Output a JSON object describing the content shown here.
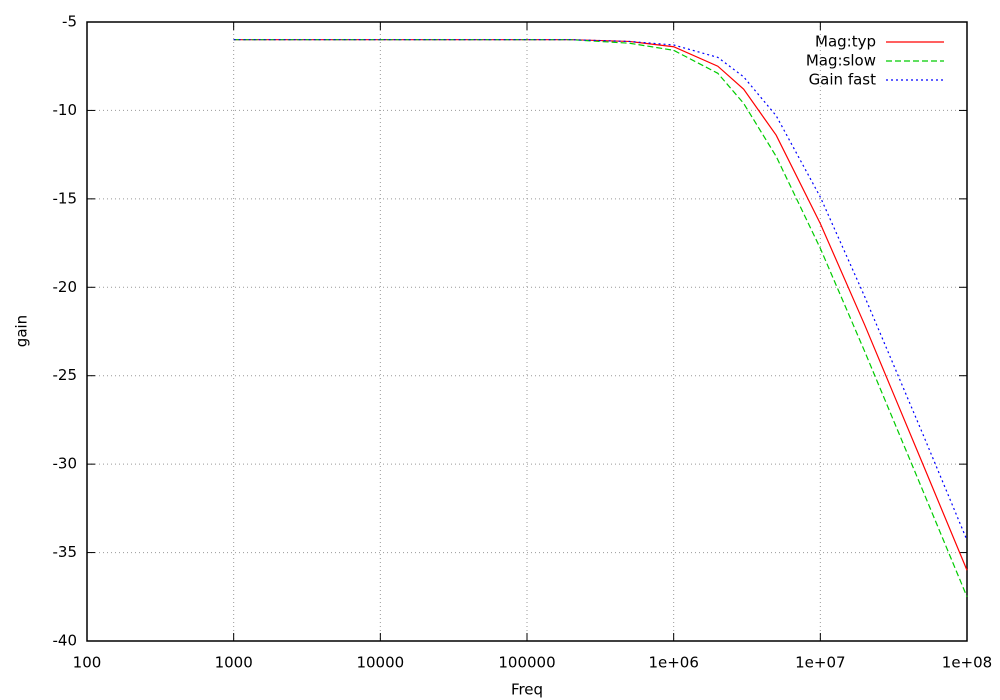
{
  "chart_data": {
    "type": "line",
    "x_label": "Freq",
    "y_label": "gain",
    "x": [
      1000,
      10000,
      100000,
      200000,
      500000,
      1000000,
      2000000,
      3000000,
      5000000,
      10000000,
      20000000,
      50000000,
      100000000
    ],
    "series": [
      {
        "name": "Mag:typ",
        "color": "#ff0000",
        "dash": "solid",
        "values": [
          -6.0,
          -6.0,
          -6.0,
          -6.0,
          -6.1,
          -6.4,
          -7.5,
          -8.8,
          -11.4,
          -16.4,
          -22.1,
          -30.0,
          -36.0
        ]
      },
      {
        "name": "Mag:slow",
        "color": "#00cc00",
        "dash": "dashed",
        "values": [
          -6.0,
          -6.0,
          -6.0,
          -6.0,
          -6.2,
          -6.6,
          -7.9,
          -9.6,
          -12.6,
          -17.8,
          -23.6,
          -31.5,
          -37.5
        ]
      },
      {
        "name": "Gain fast",
        "color": "#0000ff",
        "dash": "dotted",
        "values": [
          -6.0,
          -6.0,
          -6.0,
          -6.0,
          -6.1,
          -6.3,
          -7.0,
          -8.1,
          -10.3,
          -14.9,
          -20.5,
          -28.3,
          -34.3
        ]
      }
    ],
    "xlog": true,
    "xlim": [
      100,
      100000000
    ],
    "xticks": [
      100,
      1000,
      10000,
      100000,
      {
        "value": 1000000,
        "label": "1e+06"
      },
      {
        "value": 10000000,
        "label": "1e+07"
      },
      {
        "value": 100000000,
        "label": "1e+08"
      }
    ],
    "ylim": [
      -40,
      -5
    ],
    "yticks": [
      -40,
      -35,
      -30,
      -25,
      -20,
      -15,
      -10,
      -5
    ],
    "grid": true,
    "legend": "top-right"
  }
}
